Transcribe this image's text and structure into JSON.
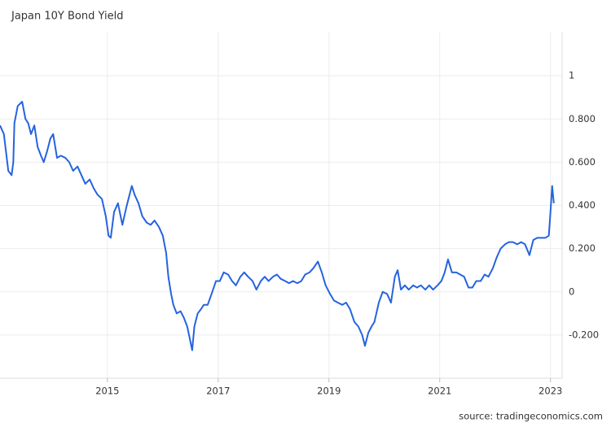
{
  "chart_data": {
    "type": "line",
    "title": "Japan 10Y Bond Yield",
    "source": "source: tradingeconomics.com",
    "color": "#2563e0",
    "grid": true,
    "xlim": [
      2013.06,
      2023.21
    ],
    "xticks": [
      2015,
      2017,
      2019,
      2021,
      2023
    ],
    "ylim": [
      -0.4,
      1.2
    ],
    "yticks": [
      {
        "value": -0.2,
        "label": "-0.200"
      },
      0,
      {
        "value": 0.2,
        "label": "0.200"
      },
      {
        "value": 0.4,
        "label": "0.400"
      },
      {
        "value": 0.6,
        "label": "0.600"
      },
      {
        "value": 0.8,
        "label": "0.800"
      },
      1
    ],
    "x": [
      2013.06,
      2013.13,
      2013.21,
      2013.27,
      2013.3,
      2013.32,
      2013.38,
      2013.46,
      2013.52,
      2013.57,
      2013.62,
      2013.68,
      2013.74,
      2013.8,
      2013.85,
      2013.91,
      2013.97,
      2014.02,
      2014.09,
      2014.16,
      2014.24,
      2014.31,
      2014.38,
      2014.46,
      2014.53,
      2014.6,
      2014.68,
      2014.75,
      2014.82,
      2014.9,
      2014.97,
      2015.02,
      2015.06,
      2015.12,
      2015.19,
      2015.27,
      2015.34,
      2015.38,
      2015.44,
      2015.49,
      2015.56,
      2015.63,
      2015.71,
      2015.78,
      2015.85,
      2015.93,
      2016.0,
      2016.06,
      2016.1,
      2016.15,
      2016.19,
      2016.25,
      2016.32,
      2016.38,
      2016.44,
      2016.49,
      2016.53,
      2016.57,
      2016.63,
      2016.69,
      2016.74,
      2016.81,
      2016.88,
      2016.96,
      2017.03,
      2017.1,
      2017.18,
      2017.25,
      2017.32,
      2017.4,
      2017.47,
      2017.54,
      2017.62,
      2017.69,
      2017.77,
      2017.84,
      2017.91,
      2017.99,
      2018.06,
      2018.13,
      2018.21,
      2018.28,
      2018.35,
      2018.43,
      2018.5,
      2018.57,
      2018.65,
      2018.72,
      2018.8,
      2018.87,
      2018.94,
      2019.02,
      2019.09,
      2019.16,
      2019.24,
      2019.31,
      2019.38,
      2019.46,
      2019.53,
      2019.6,
      2019.65,
      2019.71,
      2019.77,
      2019.82,
      2019.9,
      2019.97,
      2020.05,
      2020.12,
      2020.19,
      2020.24,
      2020.3,
      2020.37,
      2020.44,
      2020.52,
      2020.59,
      2020.66,
      2020.74,
      2020.81,
      2020.88,
      2020.96,
      2021.03,
      2021.09,
      2021.15,
      2021.22,
      2021.3,
      2021.37,
      2021.44,
      2021.52,
      2021.59,
      2021.66,
      2021.74,
      2021.81,
      2021.88,
      2021.96,
      2022.03,
      2022.1,
      2022.18,
      2022.25,
      2022.32,
      2022.4,
      2022.47,
      2022.54,
      2022.62,
      2022.69,
      2022.76,
      2022.84,
      2022.91,
      2022.97,
      2023.0,
      2023.03,
      2023.06
    ],
    "values": [
      0.77,
      0.73,
      0.56,
      0.54,
      0.6,
      0.78,
      0.86,
      0.88,
      0.8,
      0.78,
      0.73,
      0.77,
      0.67,
      0.63,
      0.6,
      0.65,
      0.71,
      0.73,
      0.62,
      0.63,
      0.62,
      0.6,
      0.56,
      0.58,
      0.54,
      0.5,
      0.52,
      0.48,
      0.45,
      0.43,
      0.35,
      0.26,
      0.25,
      0.37,
      0.41,
      0.31,
      0.39,
      0.43,
      0.49,
      0.45,
      0.41,
      0.35,
      0.32,
      0.31,
      0.33,
      0.3,
      0.26,
      0.18,
      0.07,
      -0.01,
      -0.06,
      -0.1,
      -0.09,
      -0.12,
      -0.16,
      -0.22,
      -0.27,
      -0.16,
      -0.1,
      -0.08,
      -0.06,
      -0.06,
      -0.01,
      0.05,
      0.05,
      0.09,
      0.08,
      0.05,
      0.03,
      0.07,
      0.09,
      0.07,
      0.05,
      0.01,
      0.05,
      0.07,
      0.05,
      0.07,
      0.08,
      0.06,
      0.05,
      0.04,
      0.05,
      0.04,
      0.05,
      0.08,
      0.09,
      0.11,
      0.14,
      0.09,
      0.03,
      -0.01,
      -0.04,
      -0.05,
      -0.06,
      -0.05,
      -0.08,
      -0.14,
      -0.16,
      -0.2,
      -0.25,
      -0.19,
      -0.16,
      -0.14,
      -0.05,
      0.0,
      -0.01,
      -0.05,
      0.07,
      0.1,
      0.01,
      0.03,
      0.01,
      0.03,
      0.02,
      0.03,
      0.01,
      0.03,
      0.01,
      0.03,
      0.05,
      0.09,
      0.15,
      0.09,
      0.09,
      0.08,
      0.07,
      0.02,
      0.02,
      0.05,
      0.05,
      0.08,
      0.07,
      0.11,
      0.16,
      0.2,
      0.22,
      0.23,
      0.23,
      0.22,
      0.23,
      0.22,
      0.17,
      0.24,
      0.25,
      0.25,
      0.25,
      0.26,
      0.37,
      0.49,
      0.41
    ]
  }
}
